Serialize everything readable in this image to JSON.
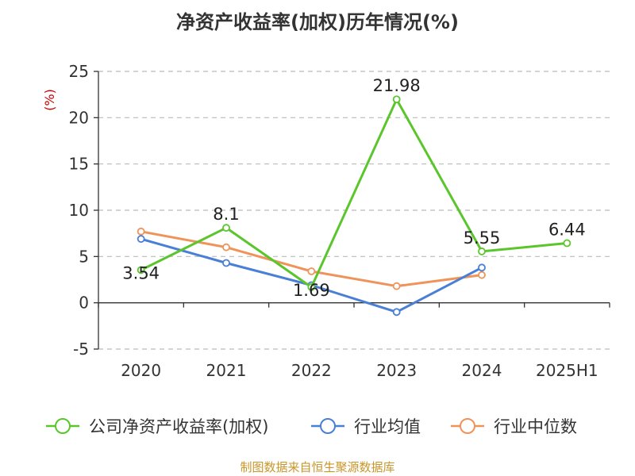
{
  "chart_data": {
    "type": "line",
    "title": "净资产收益率(加权)历年情况(%)",
    "ylabel": "(%)",
    "xlabel": "",
    "categories": [
      "2020",
      "2021",
      "2022",
      "2023",
      "2024",
      "2025H1"
    ],
    "ylim": [
      -5,
      25
    ],
    "yticks": [
      -5,
      0,
      5,
      10,
      15,
      20,
      25
    ],
    "grid": true,
    "legend_position": "bottom",
    "series": [
      {
        "name": "公司净资产收益率(加权)",
        "color": "#5bc62c",
        "values": [
          3.54,
          8.1,
          1.69,
          21.98,
          5.55,
          6.44
        ],
        "labels": [
          "3.54",
          "8.1",
          "1.69",
          "21.98",
          "5.55",
          "6.44"
        ]
      },
      {
        "name": "行业均值",
        "color": "#4a7fd6",
        "values": [
          6.9,
          4.3,
          1.9,
          -1.0,
          3.8,
          null
        ]
      },
      {
        "name": "行业中位数",
        "color": "#f0935a",
        "values": [
          7.7,
          6.0,
          3.4,
          1.8,
          3.0,
          null
        ]
      }
    ]
  },
  "footer": {
    "source": "制图数据来自恒生聚源数据库",
    "source_color": "#c8962a"
  },
  "style": {
    "unit_color": "#cc0000",
    "grid_color": "#bbbbbb",
    "axis_color": "#333333"
  }
}
